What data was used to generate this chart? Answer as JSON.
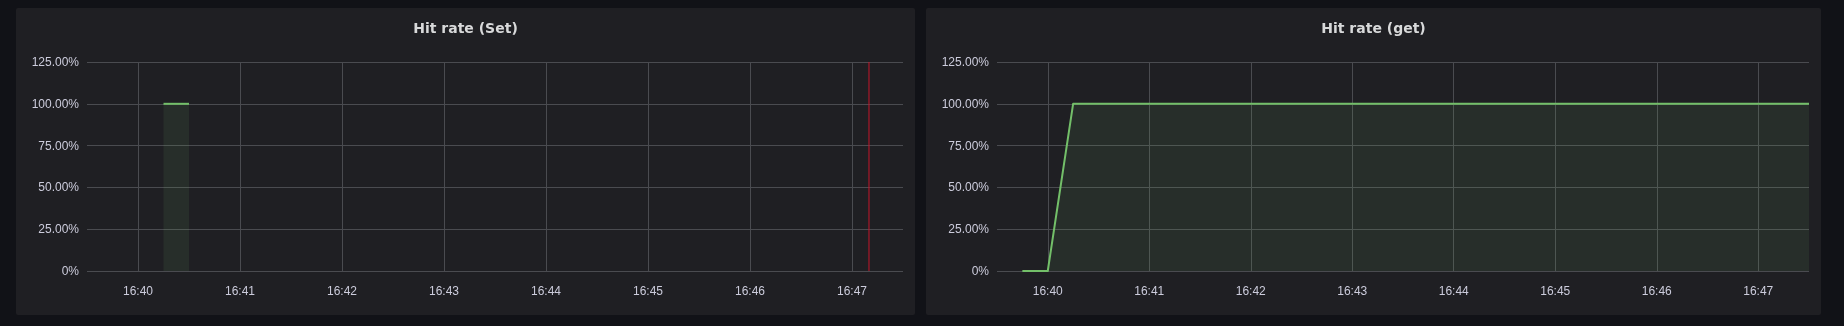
{
  "chart_data": [
    {
      "type": "area",
      "title": "Hit rate (Set)",
      "x": [
        16.670833,
        16.675
      ],
      "values": [
        100,
        100
      ],
      "color": "#73bf69",
      "xlim": [
        16.658333,
        16.791667
      ],
      "xticks": [
        {
          "value": 16.666667,
          "label": "16:40"
        },
        {
          "value": 16.683333,
          "label": "16:41"
        },
        {
          "value": 16.7,
          "label": "16:42"
        },
        {
          "value": 16.716667,
          "label": "16:43"
        },
        {
          "value": 16.733333,
          "label": "16:44"
        },
        {
          "value": 16.75,
          "label": "16:45"
        },
        {
          "value": 16.766667,
          "label": "16:46"
        },
        {
          "value": 16.783333,
          "label": "16:47"
        }
      ],
      "ylim": [
        0,
        125
      ],
      "yticks": [
        {
          "value": 0,
          "label": "0%"
        },
        {
          "value": 25,
          "label": "25.00%"
        },
        {
          "value": 50,
          "label": "50.00%"
        },
        {
          "value": 75,
          "label": "75.00%"
        },
        {
          "value": 100,
          "label": "100.00%"
        },
        {
          "value": 125,
          "label": "125.00%"
        }
      ],
      "grid": true,
      "ref_lines": [
        {
          "axis": "x",
          "value": 16.786111,
          "color": "#c4162a"
        }
      ]
    },
    {
      "type": "area",
      "title": "Hit rate (get)",
      "x": [
        16.6625,
        16.666667,
        16.670833,
        16.791667
      ],
      "values": [
        0,
        0,
        100,
        100
      ],
      "color": "#73bf69",
      "xlim": [
        16.658333,
        16.791667
      ],
      "xticks": [
        {
          "value": 16.666667,
          "label": "16:40"
        },
        {
          "value": 16.683333,
          "label": "16:41"
        },
        {
          "value": 16.7,
          "label": "16:42"
        },
        {
          "value": 16.716667,
          "label": "16:43"
        },
        {
          "value": 16.733333,
          "label": "16:44"
        },
        {
          "value": 16.75,
          "label": "16:45"
        },
        {
          "value": 16.766667,
          "label": "16:46"
        },
        {
          "value": 16.783333,
          "label": "16:47"
        }
      ],
      "ylim": [
        0,
        125
      ],
      "yticks": [
        {
          "value": 0,
          "label": "0%"
        },
        {
          "value": 25,
          "label": "25.00%"
        },
        {
          "value": 50,
          "label": "50.00%"
        },
        {
          "value": 75,
          "label": "75.00%"
        },
        {
          "value": 100,
          "label": "100.00%"
        },
        {
          "value": 125,
          "label": "125.00%"
        }
      ],
      "grid": true
    }
  ]
}
